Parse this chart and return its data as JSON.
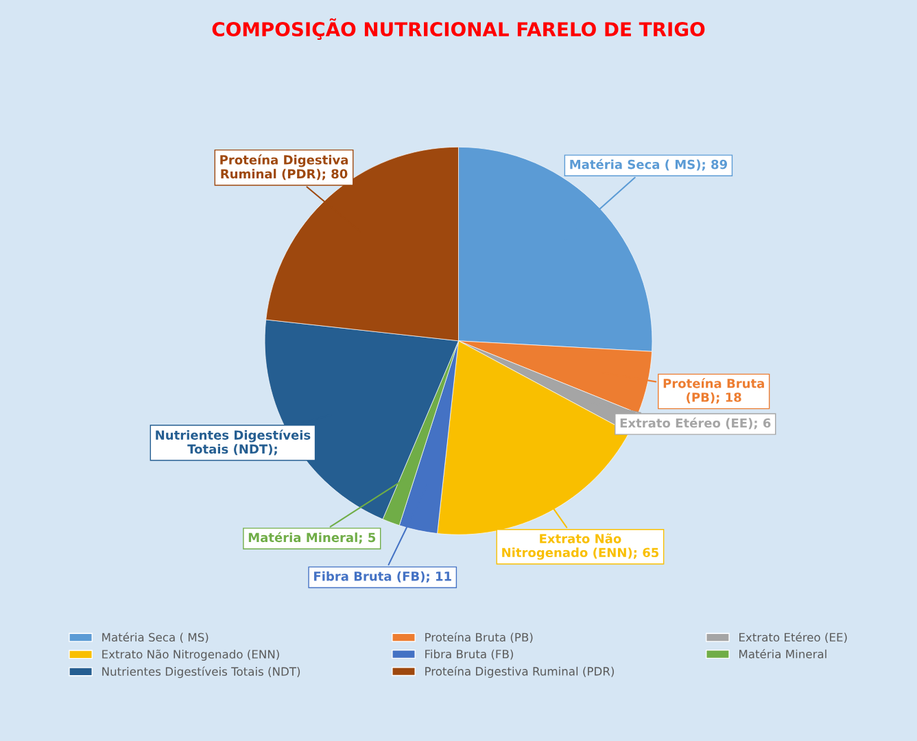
{
  "chart_data": {
    "type": "pie",
    "title": "COMPOSIÇÃO NUTRICIONAL FARELO DE TRIGO",
    "categories": [
      "Matéria Seca ( MS)",
      "Proteína Bruta (PB)",
      "Extrato Etéreo (EE)",
      "Extrato Não Nitrogenado (ENN)",
      "Fibra Bruta (FB)",
      "Matéria Mineral",
      "Nutrientes Digestíveis Totais (NDT)",
      "Proteína Digestiva Ruminal (PDR)"
    ],
    "values": [
      89,
      18,
      6,
      65,
      11,
      5,
      70,
      80
    ],
    "colors": [
      "#5b9bd5",
      "#ed7d31",
      "#a5a5a5",
      "#f9bf00",
      "#4472c4",
      "#70ad47",
      "#255e91",
      "#9e480e"
    ],
    "value_labels": [
      "Matéria Seca ( MS); 89",
      "Proteína Bruta (PB); 18",
      "Extrato Etéreo (EE); 6",
      "Extrato Não Nitrogenado (ENN); 65",
      "Fibra Bruta (FB); 11",
      "Matéria Mineral; 5",
      "Nutrientes Digestíveis Totais (NDT);",
      "Proteína Digestiva Ruminal (PDR); 80"
    ],
    "legend": "bottom"
  }
}
